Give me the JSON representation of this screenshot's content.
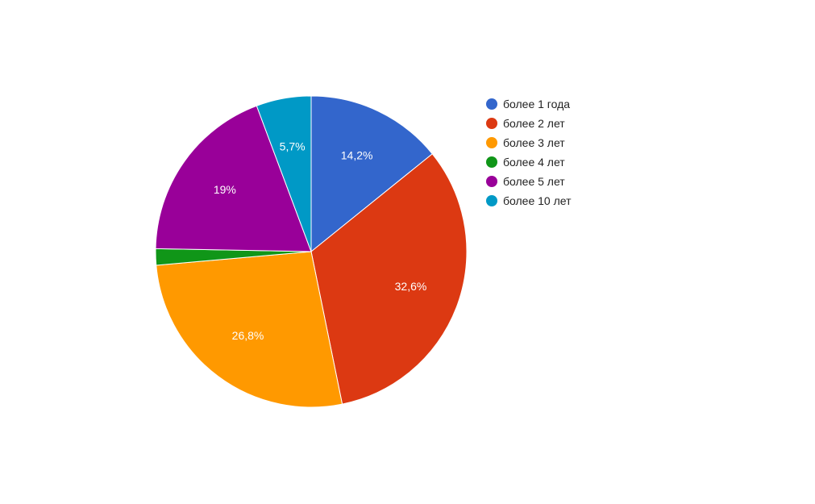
{
  "chart_data": {
    "type": "pie",
    "legend_position": "right",
    "slices": [
      {
        "label": "более 1 года",
        "value": 14.2,
        "display": "14,2%",
        "color": "#3366cc"
      },
      {
        "label": "более 2 лет",
        "value": 32.6,
        "display": "32,6%",
        "color": "#dc3912"
      },
      {
        "label": "более 3 лет",
        "value": 26.8,
        "display": "26,8%",
        "color": "#ff9900"
      },
      {
        "label": "более 4 лет",
        "value": 1.7,
        "display": "",
        "color": "#109618"
      },
      {
        "label": "более 5 лет",
        "value": 19.0,
        "display": "19%",
        "color": "#990099"
      },
      {
        "label": "более 10 лет",
        "value": 5.7,
        "display": "5,7%",
        "color": "#0099c6"
      }
    ]
  }
}
